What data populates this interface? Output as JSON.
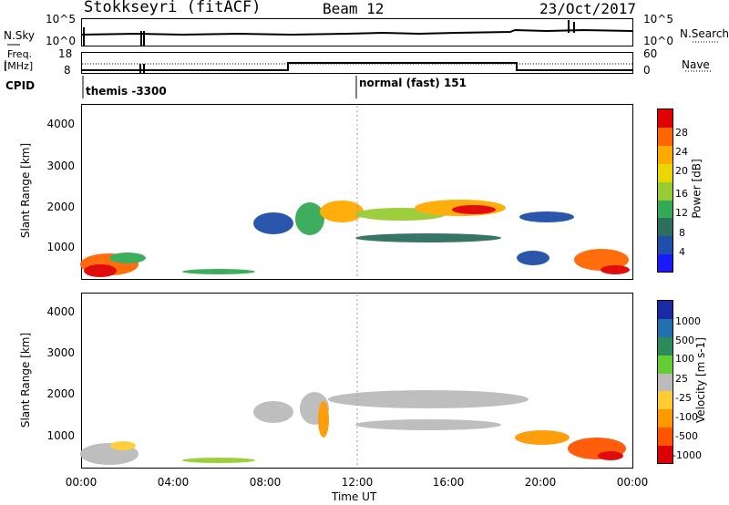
{
  "header": {
    "station": "Stokkseyri (fitACF)",
    "beam": "Beam 12",
    "date": "23/Oct/2017"
  },
  "noise_panel": {
    "left_label": "N.Sky",
    "right_label": "N.Search",
    "left_ticks": [
      "10^5",
      "10^0"
    ],
    "right_ticks": [
      "10^5",
      "10^0"
    ]
  },
  "freq_panel": {
    "left_label_line1": "Freq.",
    "left_label_line2": "[MHz]",
    "right_label": "Nave",
    "left_ticks": [
      "18",
      "8"
    ],
    "right_ticks": [
      "60",
      "0"
    ]
  },
  "cpid": {
    "label": "CPID",
    "segments": [
      {
        "text": "themis -3300"
      },
      {
        "text": "normal (fast) 151"
      }
    ]
  },
  "power_panel": {
    "ylabel": "Slant Range [km]",
    "y_ticks": [
      "4000",
      "3000",
      "2000",
      "1000"
    ],
    "colorbar_label": "Power [dB]",
    "colorbar_ticks": [
      "28",
      "24",
      "20",
      "16",
      "12",
      "8",
      "4"
    ],
    "colors": [
      "#e00000",
      "#ff6600",
      "#ffaa00",
      "#e8d800",
      "#99cc33",
      "#33aa55",
      "#2d6e5e",
      "#1f4fa8",
      "#1a1aff"
    ]
  },
  "velocity_panel": {
    "ylabel": "Slant Range [km]",
    "y_ticks": [
      "4000",
      "3000",
      "2000",
      "1000"
    ],
    "colorbar_label": "Velocity [m s-1]",
    "colorbar_ticks": [
      "1000",
      "500",
      "100",
      "25",
      "-25",
      "-100",
      "-500",
      "-1000"
    ],
    "colors": [
      "#1a2aa0",
      "#2070b0",
      "#2d8a5a",
      "#66cc33",
      "#bbbbbb",
      "#ffcc33",
      "#ff9900",
      "#ff5500",
      "#dd0000"
    ]
  },
  "x_axis": {
    "label": "Time UT",
    "ticks": [
      "00:00",
      "04:00",
      "08:00",
      "12:00",
      "16:00",
      "20:00",
      "00:00"
    ]
  }
}
